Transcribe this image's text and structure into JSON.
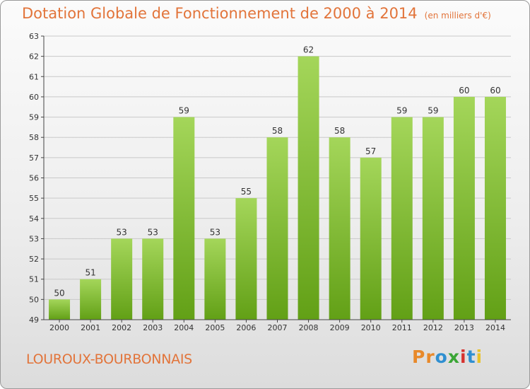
{
  "header": {
    "title": "Dotation Globale de Fonctionnement de 2000 à 2014",
    "subtitle": "(en milliers d'€)"
  },
  "footer": {
    "commune": "LOUROUX-BOURBONNAIS",
    "logo_letters": [
      "P",
      "r",
      "o",
      "x",
      "i",
      "t",
      "i"
    ],
    "logo_colors": [
      "#e8892a",
      "#e8892a",
      "#2f8fd1",
      "#3aa535",
      "#d6322f",
      "#2f8fd1",
      "#e8c22a"
    ]
  },
  "colors": {
    "bar_light": "#a4d65a",
    "bar_dark": "#62a016",
    "grid": "#c9c9c9",
    "axis": "#444444",
    "text": "#333333"
  },
  "chart_data": {
    "type": "bar",
    "title": "Dotation Globale de Fonctionnement de 2000 à 2014",
    "subtitle": "(en milliers d'€)",
    "xlabel": "",
    "ylabel": "",
    "categories": [
      "2000",
      "2001",
      "2002",
      "2003",
      "2004",
      "2005",
      "2006",
      "2007",
      "2008",
      "2009",
      "2010",
      "2011",
      "2012",
      "2013",
      "2014"
    ],
    "values": [
      50,
      51,
      53,
      53,
      59,
      53,
      55,
      58,
      62,
      58,
      57,
      59,
      59,
      60,
      60
    ],
    "ylim": [
      49,
      63
    ],
    "yticks": [
      49,
      50,
      51,
      52,
      53,
      54,
      55,
      56,
      57,
      58,
      59,
      60,
      61,
      62,
      63
    ],
    "grid": true,
    "data_labels": true
  }
}
